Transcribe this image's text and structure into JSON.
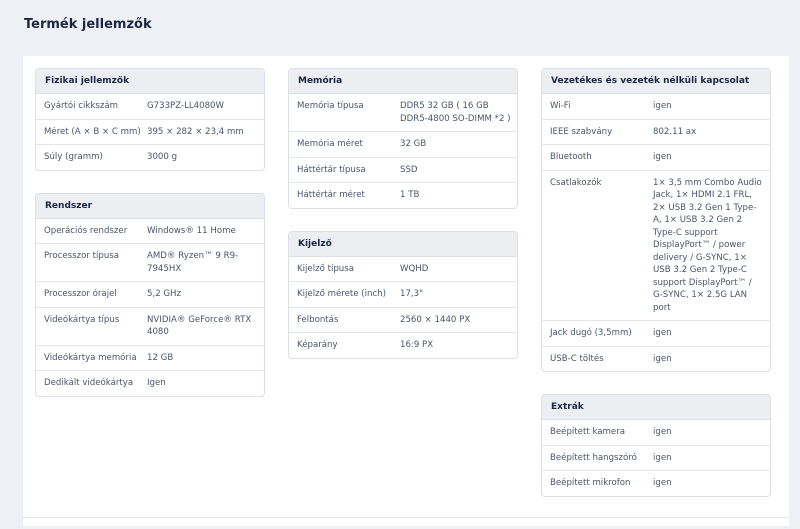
{
  "page_title": "Termék jellemzők",
  "columns": [
    [
      {
        "title": "Fizikai jellemzők",
        "rows": [
          {
            "label": "Gyártói cikkszám",
            "value": "G733PZ-LL4080W"
          },
          {
            "label": "Méret (A × B × C mm)",
            "value": "395 × 282 × 23,4 mm"
          },
          {
            "label": "Súly (gramm)",
            "value": "3000 g"
          }
        ]
      },
      {
        "title": "Rendszer",
        "rows": [
          {
            "label": "Operációs rendszer",
            "value": "Windows® 11 Home"
          },
          {
            "label": "Processzor típusa",
            "value": "AMD® Ryzen™ 9 R9-7945HX"
          },
          {
            "label": "Processzor órajel",
            "value": "5,2 GHz"
          },
          {
            "label": "Videókártya típus",
            "value": "NVIDIA® GeForce® RTX 4080"
          },
          {
            "label": "Videókártya memória",
            "value": "12 GB"
          },
          {
            "label": "Dedikált videókártya",
            "value": "Igen"
          }
        ]
      }
    ],
    [
      {
        "title": "Memória",
        "rows": [
          {
            "label": "Memória típusa",
            "value": "DDR5 32 GB ( 16 GB DDR5-4800 SO-DIMM *2 )"
          },
          {
            "label": "Memória méret",
            "value": "32 GB"
          },
          {
            "label": "Háttértár típusa",
            "value": "SSD"
          },
          {
            "label": "Háttértár méret",
            "value": "1 TB"
          }
        ]
      },
      {
        "title": "Kijelző",
        "rows": [
          {
            "label": "Kijelző típusa",
            "value": "WQHD"
          },
          {
            "label": "Kijelző mérete (inch)",
            "value": "17,3\""
          },
          {
            "label": "Felbontás",
            "value": "2560 × 1440 PX"
          },
          {
            "label": "Képarány",
            "value": "16:9 PX"
          }
        ]
      }
    ],
    [
      {
        "title": "Vezetékes és vezeték nélküli kapcsolat",
        "rows": [
          {
            "label": "Wi-Fi",
            "value": "igen"
          },
          {
            "label": "IEEE szabvány",
            "value": "802.11 ax"
          },
          {
            "label": "Bluetooth",
            "value": "igen"
          },
          {
            "label": "Csatlakozók",
            "value": "1× 3,5 mm Combo Audio Jack, 1× HDMI 2.1 FRL, 2× USB 3.2 Gen 1 Type-A, 1× USB 3.2 Gen 2 Type-C support DisplayPort™ / power delivery / G-SYNC, 1× USB 3.2 Gen 2 Type-C support DisplayPort™ / G-SYNC, 1× 2.5G LAN port"
          },
          {
            "label": "Jack dugó (3,5mm)",
            "value": "igen"
          },
          {
            "label": "USB-C töltés",
            "value": "igen"
          }
        ]
      },
      {
        "title": "Extrák",
        "rows": [
          {
            "label": "Beépített kamera",
            "value": "igen"
          },
          {
            "label": "Beépített hangszóró",
            "value": "igen"
          },
          {
            "label": "Beépített mikrofon",
            "value": "igen"
          }
        ]
      }
    ]
  ]
}
